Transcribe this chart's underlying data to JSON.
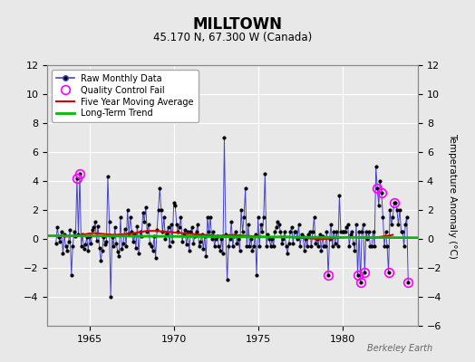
{
  "title": "MILLTOWN",
  "subtitle": "45.170 N, 67.300 W (Canada)",
  "ylabel_right": "Temperature Anomaly (°C)",
  "attribution": "Berkeley Earth",
  "ylim": [
    -6,
    12
  ],
  "xlim": [
    1962.5,
    1984.5
  ],
  "yticks_left": [
    -4,
    -2,
    0,
    2,
    4,
    6,
    8,
    10,
    12
  ],
  "yticks_right": [
    -6,
    -4,
    -2,
    0,
    2,
    4,
    6,
    8,
    10,
    12
  ],
  "xticks": [
    1965,
    1970,
    1975,
    1980
  ],
  "raw_color": "#4444cc",
  "marker_color": "#000000",
  "moving_avg_color": "#dd0000",
  "trend_color": "#00bb00",
  "qc_color": "#ff00ff",
  "background_color": "#e8e8e8",
  "legend_items": [
    "Raw Monthly Data",
    "Quality Control Fail",
    "Five Year Moving Average",
    "Long-Term Trend"
  ],
  "raw_data": [
    [
      1963.0,
      -0.3
    ],
    [
      1963.083,
      0.8
    ],
    [
      1963.167,
      0.1
    ],
    [
      1963.25,
      -0.2
    ],
    [
      1963.333,
      0.5
    ],
    [
      1963.417,
      -1.0
    ],
    [
      1963.5,
      0.3
    ],
    [
      1963.583,
      -0.5
    ],
    [
      1963.667,
      -0.8
    ],
    [
      1963.75,
      -0.2
    ],
    [
      1963.833,
      0.6
    ],
    [
      1963.917,
      -2.5
    ],
    [
      1964.0,
      -0.5
    ],
    [
      1964.083,
      0.5
    ],
    [
      1964.167,
      0.2
    ],
    [
      1964.25,
      4.2
    ],
    [
      1964.333,
      0.3
    ],
    [
      1964.417,
      4.5
    ],
    [
      1964.5,
      -0.5
    ],
    [
      1964.583,
      0.3
    ],
    [
      1964.667,
      -0.7
    ],
    [
      1964.75,
      -0.4
    ],
    [
      1964.833,
      0.1
    ],
    [
      1964.917,
      -0.8
    ],
    [
      1965.0,
      0.2
    ],
    [
      1965.083,
      -0.3
    ],
    [
      1965.167,
      0.6
    ],
    [
      1965.25,
      0.8
    ],
    [
      1965.333,
      1.2
    ],
    [
      1965.417,
      -0.1
    ],
    [
      1965.5,
      0.9
    ],
    [
      1965.583,
      -0.6
    ],
    [
      1965.667,
      -1.5
    ],
    [
      1965.75,
      -0.8
    ],
    [
      1965.833,
      0.1
    ],
    [
      1965.917,
      -0.4
    ],
    [
      1966.0,
      -0.2
    ],
    [
      1966.083,
      4.3
    ],
    [
      1966.167,
      1.2
    ],
    [
      1966.25,
      -4.0
    ],
    [
      1966.333,
      0.1
    ],
    [
      1966.417,
      -0.5
    ],
    [
      1966.5,
      0.8
    ],
    [
      1966.583,
      -0.3
    ],
    [
      1966.667,
      -0.9
    ],
    [
      1966.75,
      -1.2
    ],
    [
      1966.833,
      1.5
    ],
    [
      1966.917,
      -0.7
    ],
    [
      1967.0,
      -0.3
    ],
    [
      1967.083,
      0.7
    ],
    [
      1967.167,
      -0.5
    ],
    [
      1967.25,
      2.0
    ],
    [
      1967.333,
      0.4
    ],
    [
      1967.417,
      1.5
    ],
    [
      1967.5,
      0.5
    ],
    [
      1967.583,
      -0.2
    ],
    [
      1967.667,
      0.3
    ],
    [
      1967.75,
      -0.6
    ],
    [
      1967.833,
      0.9
    ],
    [
      1967.917,
      -1.0
    ],
    [
      1968.0,
      0.5
    ],
    [
      1968.083,
      0.2
    ],
    [
      1968.167,
      1.8
    ],
    [
      1968.25,
      1.2
    ],
    [
      1968.333,
      2.2
    ],
    [
      1968.417,
      0.5
    ],
    [
      1968.5,
      1.0
    ],
    [
      1968.583,
      -0.3
    ],
    [
      1968.667,
      -0.5
    ],
    [
      1968.75,
      -0.8
    ],
    [
      1968.833,
      0.2
    ],
    [
      1968.917,
      -1.3
    ],
    [
      1969.0,
      0.6
    ],
    [
      1969.083,
      2.0
    ],
    [
      1969.167,
      3.5
    ],
    [
      1969.25,
      2.0
    ],
    [
      1969.333,
      0.5
    ],
    [
      1969.417,
      1.5
    ],
    [
      1969.5,
      0.0
    ],
    [
      1969.583,
      0.4
    ],
    [
      1969.667,
      0.8
    ],
    [
      1969.75,
      -0.5
    ],
    [
      1969.833,
      1.0
    ],
    [
      1969.917,
      -0.2
    ],
    [
      1970.0,
      2.5
    ],
    [
      1970.083,
      2.3
    ],
    [
      1970.167,
      1.0
    ],
    [
      1970.25,
      0.5
    ],
    [
      1970.333,
      0.8
    ],
    [
      1970.417,
      1.5
    ],
    [
      1970.5,
      -0.2
    ],
    [
      1970.583,
      0.3
    ],
    [
      1970.667,
      0.6
    ],
    [
      1970.75,
      -0.4
    ],
    [
      1970.833,
      0.5
    ],
    [
      1970.917,
      -0.8
    ],
    [
      1971.0,
      0.5
    ],
    [
      1971.083,
      0.8
    ],
    [
      1971.167,
      -0.3
    ],
    [
      1971.25,
      0.2
    ],
    [
      1971.333,
      0.5
    ],
    [
      1971.417,
      1.0
    ],
    [
      1971.5,
      -0.5
    ],
    [
      1971.583,
      -0.2
    ],
    [
      1971.667,
      0.3
    ],
    [
      1971.75,
      -0.7
    ],
    [
      1971.833,
      0.2
    ],
    [
      1971.917,
      -1.2
    ],
    [
      1972.0,
      1.5
    ],
    [
      1972.083,
      0.5
    ],
    [
      1972.167,
      1.5
    ],
    [
      1972.25,
      0.0
    ],
    [
      1972.333,
      0.5
    ],
    [
      1972.417,
      -0.5
    ],
    [
      1972.5,
      0.0
    ],
    [
      1972.583,
      0.2
    ],
    [
      1972.667,
      -0.5
    ],
    [
      1972.75,
      -0.8
    ],
    [
      1972.833,
      0.0
    ],
    [
      1972.917,
      -1.0
    ],
    [
      1973.0,
      7.0
    ],
    [
      1973.083,
      0.3
    ],
    [
      1973.167,
      -2.8
    ],
    [
      1973.25,
      -0.5
    ],
    [
      1973.333,
      0.0
    ],
    [
      1973.417,
      1.2
    ],
    [
      1973.5,
      -0.5
    ],
    [
      1973.583,
      0.2
    ],
    [
      1973.667,
      0.5
    ],
    [
      1973.75,
      -0.3
    ],
    [
      1973.833,
      0.0
    ],
    [
      1973.917,
      -0.8
    ],
    [
      1974.0,
      2.0
    ],
    [
      1974.083,
      0.5
    ],
    [
      1974.167,
      1.5
    ],
    [
      1974.25,
      3.5
    ],
    [
      1974.333,
      -0.5
    ],
    [
      1974.417,
      1.0
    ],
    [
      1974.5,
      -0.5
    ],
    [
      1974.583,
      0.0
    ],
    [
      1974.667,
      -0.8
    ],
    [
      1974.75,
      -0.5
    ],
    [
      1974.833,
      0.3
    ],
    [
      1974.917,
      -2.5
    ],
    [
      1975.0,
      1.5
    ],
    [
      1975.083,
      -0.5
    ],
    [
      1975.167,
      1.0
    ],
    [
      1975.25,
      0.5
    ],
    [
      1975.333,
      1.5
    ],
    [
      1975.417,
      4.5
    ],
    [
      1975.5,
      -0.5
    ],
    [
      1975.583,
      0.3
    ],
    [
      1975.667,
      0.0
    ],
    [
      1975.75,
      -0.5
    ],
    [
      1975.833,
      0.0
    ],
    [
      1975.917,
      -0.5
    ],
    [
      1976.0,
      0.5
    ],
    [
      1976.083,
      0.8
    ],
    [
      1976.167,
      1.2
    ],
    [
      1976.25,
      1.0
    ],
    [
      1976.333,
      0.5
    ],
    [
      1976.417,
      -0.3
    ],
    [
      1976.5,
      0.0
    ],
    [
      1976.583,
      0.5
    ],
    [
      1976.667,
      -0.5
    ],
    [
      1976.75,
      -1.0
    ],
    [
      1976.833,
      -0.3
    ],
    [
      1976.917,
      0.5
    ],
    [
      1977.0,
      0.8
    ],
    [
      1977.083,
      -0.3
    ],
    [
      1977.167,
      0.5
    ],
    [
      1977.25,
      0.5
    ],
    [
      1977.333,
      0.0
    ],
    [
      1977.417,
      1.0
    ],
    [
      1977.5,
      -0.5
    ],
    [
      1977.583,
      0.3
    ],
    [
      1977.667,
      0.2
    ],
    [
      1977.75,
      -0.8
    ],
    [
      1977.833,
      0.0
    ],
    [
      1977.917,
      -0.5
    ],
    [
      1978.0,
      0.3
    ],
    [
      1978.083,
      0.5
    ],
    [
      1978.167,
      -0.5
    ],
    [
      1978.25,
      0.5
    ],
    [
      1978.333,
      1.5
    ],
    [
      1978.417,
      -0.3
    ],
    [
      1978.5,
      0.0
    ],
    [
      1978.583,
      -0.5
    ],
    [
      1978.667,
      0.3
    ],
    [
      1978.75,
      -0.8
    ],
    [
      1978.833,
      0.2
    ],
    [
      1978.917,
      -0.5
    ],
    [
      1979.0,
      -0.5
    ],
    [
      1979.083,
      0.5
    ],
    [
      1979.167,
      -2.5
    ],
    [
      1979.25,
      0.0
    ],
    [
      1979.333,
      1.0
    ],
    [
      1979.417,
      -0.5
    ],
    [
      1979.5,
      0.5
    ],
    [
      1979.583,
      -0.3
    ],
    [
      1979.667,
      0.5
    ],
    [
      1979.75,
      -0.5
    ],
    [
      1979.833,
      3.0
    ],
    [
      1979.917,
      0.5
    ],
    [
      1980.0,
      0.5
    ],
    [
      1980.083,
      0.5
    ],
    [
      1980.167,
      0.5
    ],
    [
      1980.25,
      0.8
    ],
    [
      1980.333,
      1.0
    ],
    [
      1980.417,
      -0.5
    ],
    [
      1980.5,
      0.3
    ],
    [
      1980.583,
      0.5
    ],
    [
      1980.667,
      -0.3
    ],
    [
      1980.75,
      -0.8
    ],
    [
      1980.833,
      1.0
    ],
    [
      1980.917,
      -2.5
    ],
    [
      1981.0,
      0.5
    ],
    [
      1981.083,
      -3.0
    ],
    [
      1981.167,
      0.5
    ],
    [
      1981.25,
      1.0
    ],
    [
      1981.333,
      -2.3
    ],
    [
      1981.417,
      0.5
    ],
    [
      1981.5,
      0.0
    ],
    [
      1981.583,
      0.5
    ],
    [
      1981.667,
      -0.5
    ],
    [
      1981.75,
      -0.5
    ],
    [
      1981.833,
      0.5
    ],
    [
      1981.917,
      -0.5
    ],
    [
      1982.0,
      5.0
    ],
    [
      1982.083,
      3.5
    ],
    [
      1982.167,
      2.3
    ],
    [
      1982.25,
      4.0
    ],
    [
      1982.333,
      3.2
    ],
    [
      1982.417,
      1.5
    ],
    [
      1982.5,
      -0.5
    ],
    [
      1982.583,
      0.5
    ],
    [
      1982.667,
      -0.5
    ],
    [
      1982.75,
      -2.3
    ],
    [
      1982.833,
      2.0
    ],
    [
      1982.917,
      1.0
    ],
    [
      1983.0,
      1.5
    ],
    [
      1983.083,
      2.5
    ],
    [
      1983.167,
      2.5
    ],
    [
      1983.25,
      2.0
    ],
    [
      1983.333,
      1.0
    ],
    [
      1983.417,
      2.0
    ],
    [
      1983.5,
      0.5
    ],
    [
      1983.583,
      0.5
    ],
    [
      1983.667,
      -0.5
    ],
    [
      1983.75,
      1.0
    ],
    [
      1983.833,
      1.5
    ],
    [
      1983.917,
      -3.0
    ]
  ],
  "qc_points": [
    [
      1964.25,
      4.2
    ],
    [
      1964.417,
      4.5
    ],
    [
      1979.167,
      -2.5
    ],
    [
      1980.917,
      -2.5
    ],
    [
      1981.083,
      -3.0
    ],
    [
      1981.333,
      -2.3
    ],
    [
      1982.083,
      3.5
    ],
    [
      1982.333,
      3.2
    ],
    [
      1982.75,
      -2.3
    ],
    [
      1983.083,
      2.5
    ],
    [
      1983.917,
      -3.0
    ]
  ],
  "moving_avg": [
    [
      1963.5,
      0.15
    ],
    [
      1963.75,
      0.18
    ],
    [
      1964.0,
      0.2
    ],
    [
      1964.25,
      0.22
    ],
    [
      1964.5,
      0.28
    ],
    [
      1964.75,
      0.32
    ],
    [
      1965.0,
      0.38
    ],
    [
      1965.25,
      0.4
    ],
    [
      1965.5,
      0.38
    ],
    [
      1965.75,
      0.35
    ],
    [
      1966.0,
      0.32
    ],
    [
      1966.25,
      0.3
    ],
    [
      1966.5,
      0.28
    ],
    [
      1966.75,
      0.3
    ],
    [
      1967.0,
      0.32
    ],
    [
      1967.25,
      0.35
    ],
    [
      1967.5,
      0.38
    ],
    [
      1967.75,
      0.42
    ],
    [
      1968.0,
      0.48
    ],
    [
      1968.25,
      0.52
    ],
    [
      1968.5,
      0.55
    ],
    [
      1968.75,
      0.55
    ],
    [
      1969.0,
      0.55
    ],
    [
      1969.25,
      0.52
    ],
    [
      1969.5,
      0.5
    ],
    [
      1969.75,
      0.48
    ],
    [
      1970.0,
      0.45
    ],
    [
      1970.25,
      0.42
    ],
    [
      1970.5,
      0.4
    ],
    [
      1970.75,
      0.38
    ],
    [
      1971.0,
      0.35
    ],
    [
      1971.25,
      0.33
    ],
    [
      1971.5,
      0.3
    ],
    [
      1971.75,
      0.28
    ],
    [
      1972.0,
      0.26
    ],
    [
      1972.25,
      0.24
    ],
    [
      1972.5,
      0.22
    ],
    [
      1972.75,
      0.22
    ],
    [
      1973.0,
      0.24
    ],
    [
      1973.25,
      0.26
    ],
    [
      1973.5,
      0.28
    ],
    [
      1973.75,
      0.26
    ],
    [
      1974.0,
      0.24
    ],
    [
      1974.25,
      0.22
    ],
    [
      1974.5,
      0.2
    ],
    [
      1974.75,
      0.18
    ],
    [
      1975.0,
      0.16
    ],
    [
      1975.25,
      0.14
    ],
    [
      1975.5,
      0.12
    ],
    [
      1975.75,
      0.12
    ],
    [
      1976.0,
      0.12
    ],
    [
      1976.25,
      0.14
    ],
    [
      1976.5,
      0.15
    ],
    [
      1976.75,
      0.14
    ],
    [
      1977.0,
      0.12
    ],
    [
      1977.25,
      0.1
    ],
    [
      1977.5,
      0.08
    ],
    [
      1977.75,
      0.06
    ],
    [
      1978.0,
      0.04
    ],
    [
      1978.25,
      0.02
    ],
    [
      1978.5,
      0.0
    ],
    [
      1978.75,
      -0.02
    ],
    [
      1979.0,
      0.0
    ],
    [
      1979.25,
      0.02
    ],
    [
      1979.5,
      0.05
    ],
    [
      1979.75,
      0.08
    ],
    [
      1980.0,
      0.1
    ],
    [
      1980.25,
      0.12
    ],
    [
      1980.5,
      0.14
    ],
    [
      1980.75,
      0.12
    ],
    [
      1981.0,
      0.1
    ],
    [
      1981.25,
      0.08
    ],
    [
      1981.5,
      0.07
    ],
    [
      1981.75,
      0.08
    ],
    [
      1982.0,
      0.1
    ],
    [
      1982.25,
      0.14
    ],
    [
      1982.5,
      0.18
    ],
    [
      1982.75,
      0.22
    ],
    [
      1983.0,
      0.28
    ]
  ],
  "trend_x": [
    1962.5,
    1984.5
  ],
  "trend_y": [
    0.22,
    0.08
  ]
}
